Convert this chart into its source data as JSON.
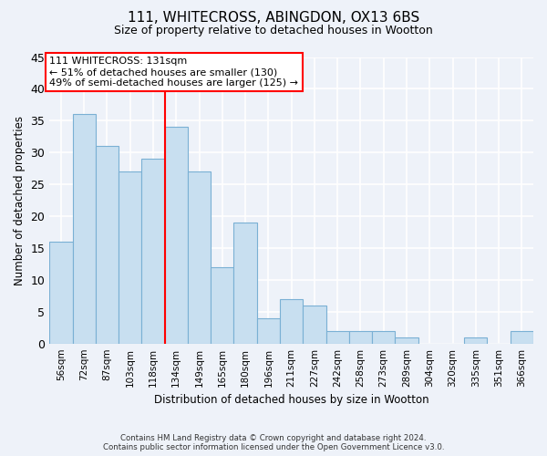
{
  "title1": "111, WHITECROSS, ABINGDON, OX13 6BS",
  "title2": "Size of property relative to detached houses in Wootton",
  "xlabel": "Distribution of detached houses by size in Wootton",
  "ylabel": "Number of detached properties",
  "bar_labels": [
    "56sqm",
    "72sqm",
    "87sqm",
    "103sqm",
    "118sqm",
    "134sqm",
    "149sqm",
    "165sqm",
    "180sqm",
    "196sqm",
    "211sqm",
    "227sqm",
    "242sqm",
    "258sqm",
    "273sqm",
    "289sqm",
    "304sqm",
    "320sqm",
    "335sqm",
    "351sqm",
    "366sqm"
  ],
  "bar_heights": [
    16,
    36,
    31,
    27,
    29,
    34,
    27,
    12,
    19,
    4,
    7,
    6,
    2,
    2,
    2,
    1,
    0,
    0,
    1,
    0,
    2
  ],
  "bar_color": "#c8dff0",
  "bar_edge_color": "#7ab0d4",
  "vline_x": 5.0,
  "vline_color": "red",
  "annotation_title": "111 WHITECROSS: 131sqm",
  "annotation_line1": "← 51% of detached houses are smaller (130)",
  "annotation_line2": "49% of semi-detached houses are larger (125) →",
  "annotation_box_color": "white",
  "annotation_box_edge": "red",
  "ylim": [
    0,
    45
  ],
  "yticks": [
    0,
    5,
    10,
    15,
    20,
    25,
    30,
    35,
    40,
    45
  ],
  "footer1": "Contains HM Land Registry data © Crown copyright and database right 2024.",
  "footer2": "Contains public sector information licensed under the Open Government Licence v3.0.",
  "bg_color": "#eef2f9"
}
